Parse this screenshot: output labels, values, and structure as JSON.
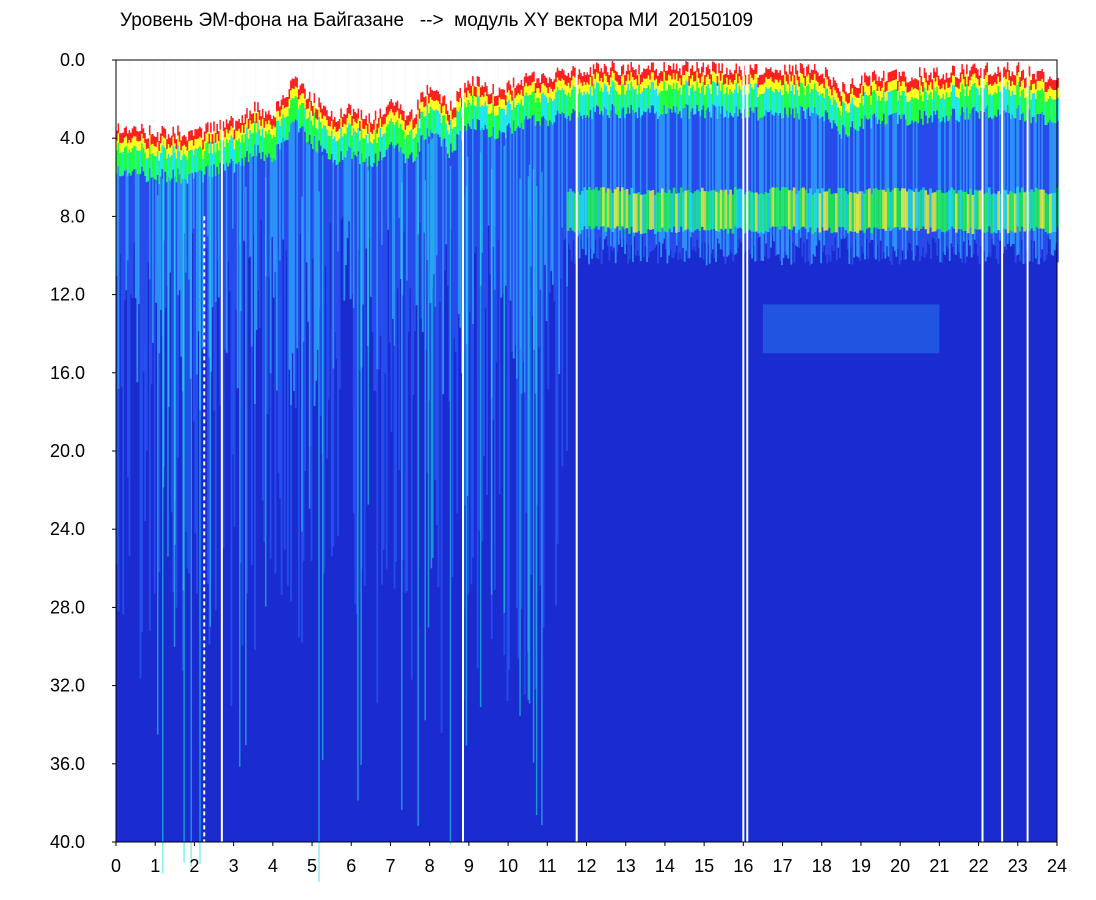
{
  "chart_data": {
    "type": "heatmap",
    "title": "Уровень ЭМ-фона на Байгазане   -->  модуль XY вектора МИ  20150109",
    "xlabel": "",
    "ylabel": "",
    "x_ticks": [
      "0",
      "1",
      "2",
      "3",
      "4",
      "5",
      "6",
      "7",
      "8",
      "9",
      "10",
      "11",
      "12",
      "13",
      "14",
      "15",
      "16",
      "17",
      "18",
      "19",
      "20",
      "21",
      "22",
      "23",
      "24"
    ],
    "y_ticks": [
      "0.0",
      "4.0",
      "8.0",
      "12.0",
      "16.0",
      "20.0",
      "24.0",
      "28.0",
      "32.0",
      "36.0",
      "40.0"
    ],
    "xlim": [
      0,
      24
    ],
    "ylim": [
      0,
      40
    ],
    "y_inverted": true,
    "grid": false,
    "colors": {
      "background": "#1a2bd0",
      "low": "#1a2bd0",
      "mid": "#30a0ff",
      "cyan": "#20e8e8",
      "green": "#20ff40",
      "yellow": "#ffff20",
      "red": "#ff2020",
      "gap": "#ffffff"
    },
    "gaps_hours": [
      2.25,
      2.7,
      8.85,
      11.75,
      16.0,
      16.1,
      22.1,
      22.6,
      23.25
    ],
    "dashed_gap_hour": 2.25,
    "intense_band_depth": [
      6.5,
      8.5
    ],
    "upper_edge_profile": [
      [
        0,
        3.5
      ],
      [
        0.5,
        3.6
      ],
      [
        1,
        3.8
      ],
      [
        1.5,
        3.7
      ],
      [
        2,
        3.9
      ],
      [
        2.5,
        3.4
      ],
      [
        3,
        3.2
      ],
      [
        3.5,
        2.5
      ],
      [
        4,
        2.8
      ],
      [
        4.5,
        1.0
      ],
      [
        5,
        2.0
      ],
      [
        5.5,
        3.0
      ],
      [
        6,
        2.5
      ],
      [
        6.5,
        3.2
      ],
      [
        7,
        2.0
      ],
      [
        7.5,
        3.0
      ],
      [
        8,
        1.2
      ],
      [
        8.5,
        2.5
      ],
      [
        9,
        1.0
      ],
      [
        9.5,
        1.5
      ],
      [
        10,
        1.4
      ],
      [
        10.5,
        1.0
      ],
      [
        11,
        0.8
      ],
      [
        11.5,
        0.6
      ],
      [
        12,
        0.5
      ],
      [
        13,
        0.4
      ],
      [
        14,
        0.5
      ],
      [
        15,
        0.4
      ],
      [
        16,
        0.5
      ],
      [
        17,
        0.6
      ],
      [
        18,
        0.5
      ],
      [
        18.5,
        1.5
      ],
      [
        19,
        1.0
      ],
      [
        20,
        0.8
      ],
      [
        21,
        0.7
      ],
      [
        22,
        0.5
      ],
      [
        23,
        0.5
      ],
      [
        24,
        1.0
      ]
    ],
    "secondary_band": {
      "hours": [
        16.5,
        21.0
      ],
      "depth": [
        12.5,
        15.0
      ]
    }
  }
}
